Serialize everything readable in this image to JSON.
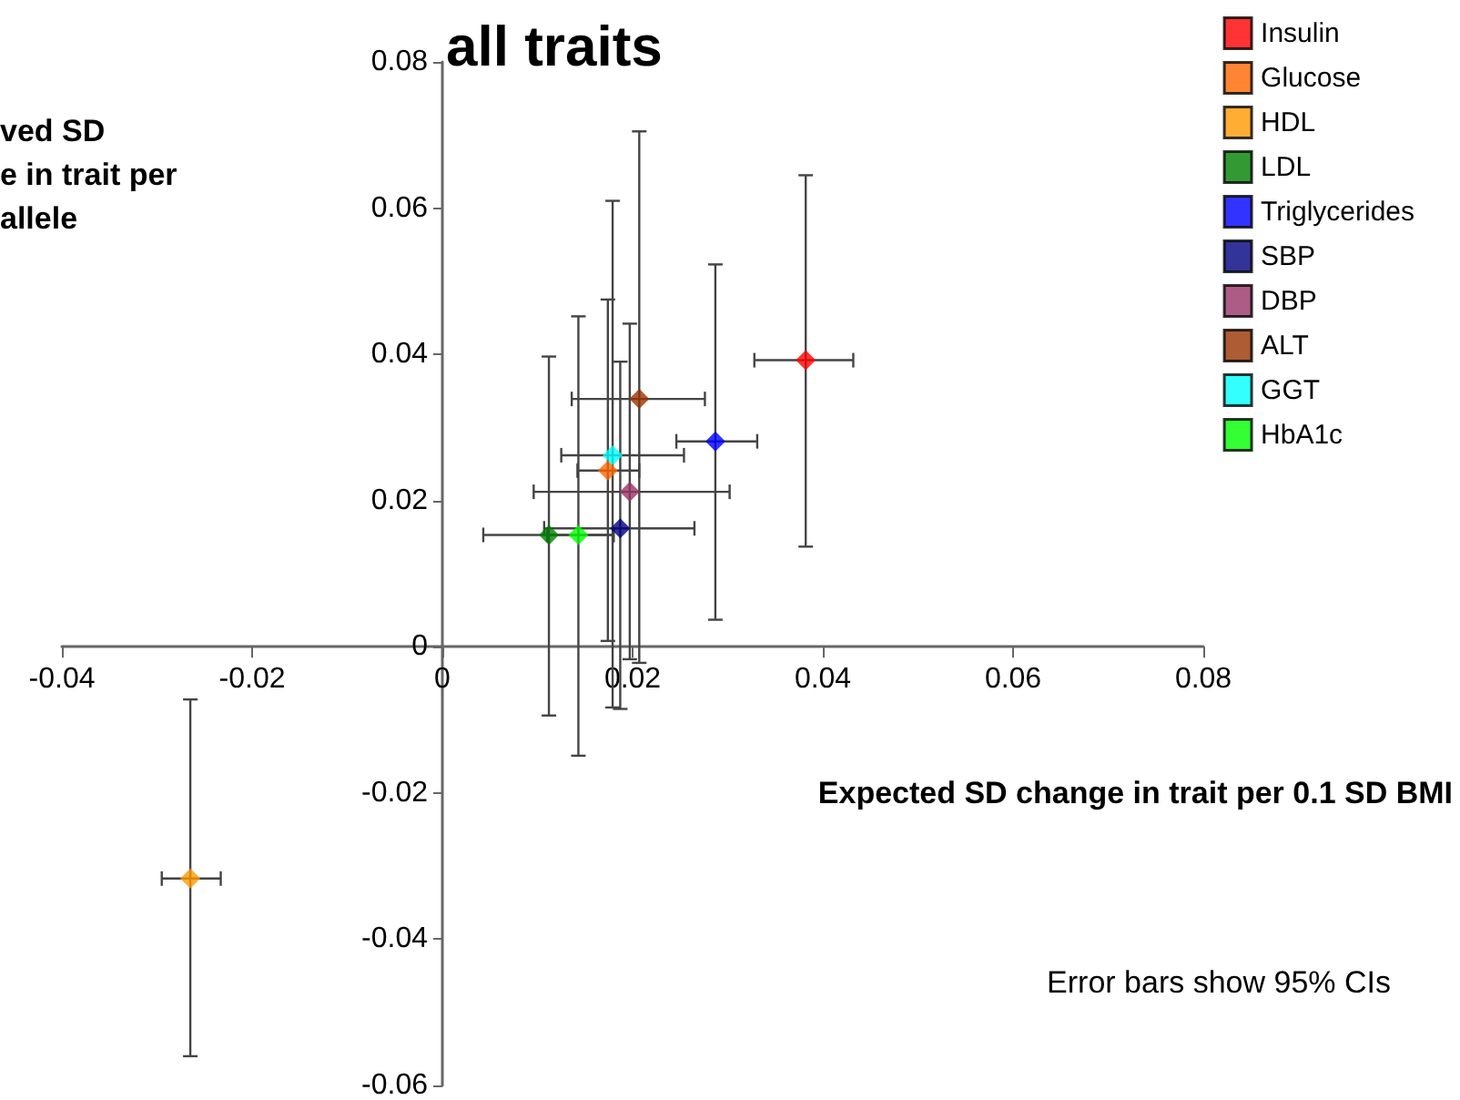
{
  "chart_data": {
    "type": "scatter",
    "title": "all traits",
    "xlabel": "Expected SD change in trait per 0.1 SD BMI",
    "ylabel": "ved SD\ne in trait per\nallele",
    "annotations": [
      "Error bars show 95% CIs"
    ],
    "xlim": [
      -0.04,
      0.08
    ],
    "xticks": [
      -0.04,
      -0.02,
      0,
      0.02,
      0.04,
      0.06,
      0.08
    ],
    "ylim": [
      -0.06,
      0.08
    ],
    "yticks": [
      -0.06,
      -0.04,
      -0.02,
      0,
      0.02,
      0.04,
      0.06,
      0.08
    ],
    "grid": false,
    "legend": "top right",
    "marker": "diamond",
    "series": [
      {
        "name": "Insulin",
        "color": "#ff0000",
        "x": [
          0.0382
        ],
        "values": [
          0.0392
        ],
        "errors": [
          [
            0.0137,
            0.0645
          ]
        ],
        "xerrors": [
          [
            0.0328,
            0.0432
          ]
        ]
      },
      {
        "name": "Glucose",
        "color": "#ff6600",
        "x": [
          0.0174
        ],
        "values": [
          0.0241
        ],
        "errors": [
          [
            0.0008,
            0.0475
          ]
        ],
        "xerrors": [
          [
            0.0142,
            0.0207
          ]
        ]
      },
      {
        "name": "HDL",
        "color": "#ff9900",
        "x": [
          -0.0265
        ],
        "values": [
          -0.0317
        ],
        "errors": [
          [
            -0.056,
            -0.0072
          ]
        ],
        "xerrors": [
          [
            -0.0295,
            -0.0233
          ]
        ]
      },
      {
        "name": "LDL",
        "color": "#008000",
        "x": [
          0.0112
        ],
        "values": [
          0.0153
        ],
        "errors": [
          [
            -0.0094,
            0.0397
          ]
        ],
        "xerrors": [
          [
            0.0043,
            0.018
          ]
        ]
      },
      {
        "name": "Triglycerides",
        "color": "#0000ff",
        "x": [
          0.0287
        ],
        "values": [
          0.0281
        ],
        "errors": [
          [
            0.0037,
            0.0523
          ]
        ],
        "xerrors": [
          [
            0.0246,
            0.0331
          ]
        ]
      },
      {
        "name": "SBP",
        "color": "#000080",
        "x": [
          0.0187
        ],
        "values": [
          0.0162
        ],
        "errors": [
          [
            -0.0085,
            0.039
          ]
        ],
        "xerrors": [
          [
            0.0107,
            0.0265
          ]
        ]
      },
      {
        "name": "DBP",
        "color": "#993366",
        "x": [
          0.0197
        ],
        "values": [
          0.0212
        ],
        "errors": [
          [
            -0.0017,
            0.0442
          ]
        ],
        "xerrors": [
          [
            0.0096,
            0.0302
          ]
        ]
      },
      {
        "name": "ALT",
        "color": "#993300",
        "x": [
          0.0207
        ],
        "values": [
          0.0339
        ],
        "errors": [
          [
            -0.0022,
            0.0705
          ]
        ],
        "xerrors": [
          [
            0.0136,
            0.0276
          ]
        ]
      },
      {
        "name": "GGT",
        "color": "#00ffff",
        "x": [
          0.0179
        ],
        "values": [
          0.0262
        ],
        "errors": [
          [
            -0.0083,
            0.061
          ]
        ],
        "xerrors": [
          [
            0.0125,
            0.0254
          ]
        ]
      },
      {
        "name": "HbA1c",
        "color": "#00ff00",
        "x": [
          0.0143
        ],
        "values": [
          0.0153
        ],
        "errors": [
          [
            -0.0149,
            0.0452
          ]
        ],
        "xerrors": [
          [
            0.011,
            0.018
          ]
        ]
      }
    ]
  }
}
